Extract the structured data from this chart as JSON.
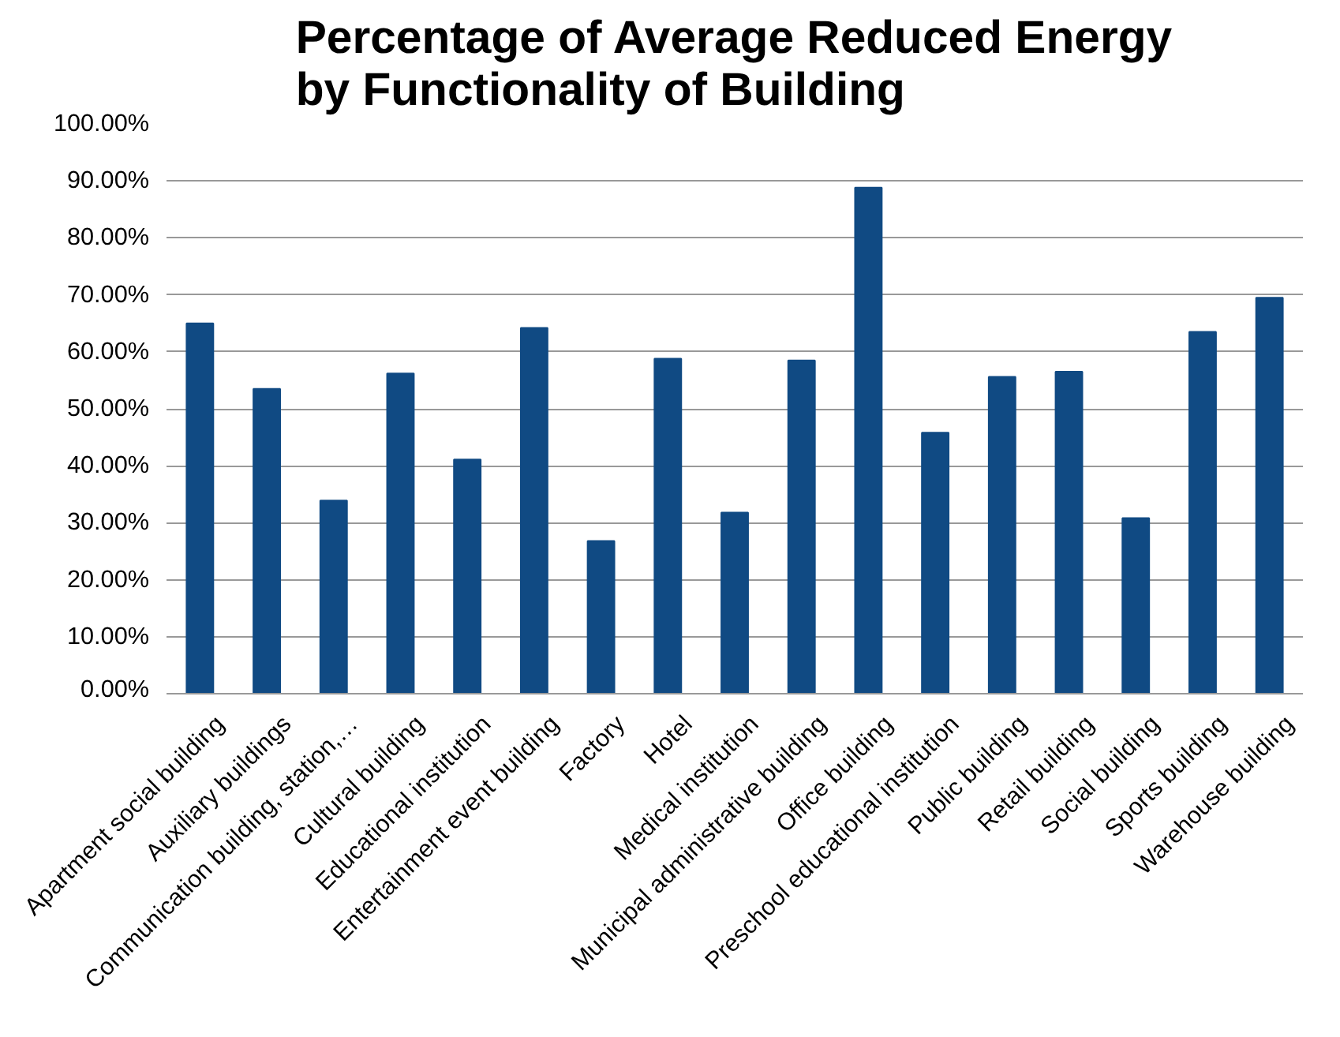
{
  "chart_data": {
    "type": "bar",
    "title": "Percentage of Average Reduced Energy\nby Functionality of Building",
    "categories": [
      "Apartment social building",
      "Auxiliary buildings",
      "Communication building, station,…",
      "Cultural building",
      "Educational institution",
      "Entertainment event building",
      "Factory",
      "Hotel",
      "Medical institution",
      "Municipal administrative building",
      "Office building",
      "Preschool educational institution",
      "Public building",
      "Retail building",
      "Social building",
      "Sports building",
      "Warehouse building"
    ],
    "values": [
      65.0,
      53.5,
      33.9,
      56.2,
      41.1,
      64.2,
      26.8,
      58.8,
      31.8,
      58.5,
      88.8,
      45.8,
      55.6,
      56.5,
      30.8,
      63.5,
      69.5
    ],
    "color": "#104a83",
    "ylim": [
      0,
      100
    ],
    "yticks": [
      {
        "value": 0,
        "label": "0.00%"
      },
      {
        "value": 10,
        "label": "10.00%"
      },
      {
        "value": 20,
        "label": "20.00%"
      },
      {
        "value": 30,
        "label": "30.00%"
      },
      {
        "value": 40,
        "label": "40.00%"
      },
      {
        "value": 50,
        "label": "50.00%"
      },
      {
        "value": 60,
        "label": "60.00%"
      },
      {
        "value": 70,
        "label": "70.00%"
      },
      {
        "value": 80,
        "label": "80.00%"
      },
      {
        "value": 90,
        "label": "90.00%"
      },
      {
        "value": 100,
        "label": "100.00%"
      }
    ],
    "grid": "y"
  }
}
